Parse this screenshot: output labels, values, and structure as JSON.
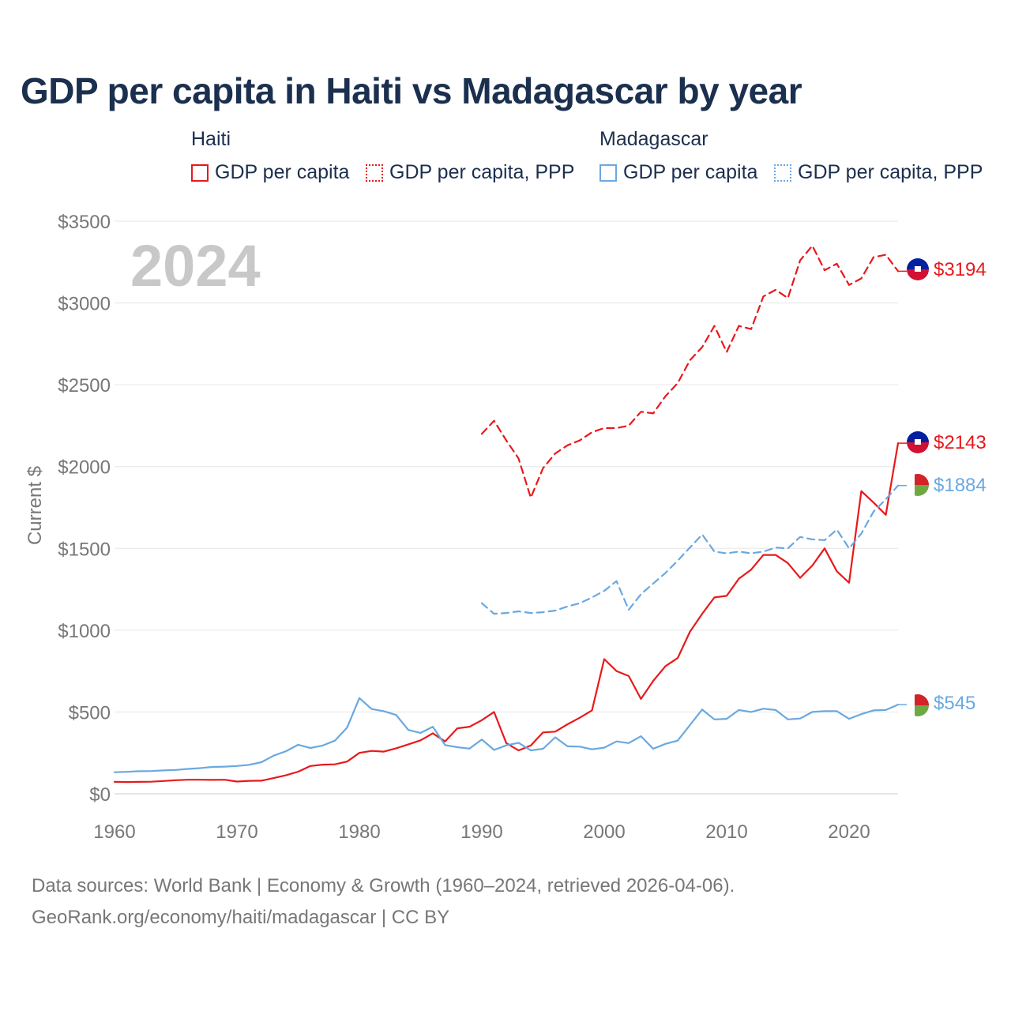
{
  "title": "GDP per capita in Haiti vs Madagascar by year",
  "legend": {
    "haiti": {
      "title": "Haiti",
      "gdp": "GDP per capita",
      "ppp": "GDP per capita, PPP",
      "color": "#e8191c"
    },
    "madagascar": {
      "title": "Madagascar",
      "gdp": "GDP per capita",
      "ppp": "GDP per capita, PPP",
      "color": "#6aa8e0"
    }
  },
  "year_label": "2024",
  "footer": {
    "sources": "Data sources: World Bank | Economy & Growth (1960–2024, retrieved 2026-04-06).",
    "credit": "GeoRank.org/economy/haiti/madagascar | CC BY"
  },
  "chart_data": {
    "type": "line",
    "ylabel": "Current $",
    "xlim": [
      1960,
      2024
    ],
    "ylim": [
      0,
      3500
    ],
    "x_ticks": [
      1960,
      1970,
      1980,
      1990,
      2000,
      2010,
      2020
    ],
    "x_tick_labels": [
      "1960",
      "1970",
      "1980",
      "1990",
      "2000",
      "2010",
      "2020"
    ],
    "y_ticks": [
      0,
      500,
      1000,
      1500,
      2000,
      2500,
      3000,
      3500
    ],
    "y_tick_labels": [
      "$0",
      "$500",
      "$1000",
      "$1500",
      "$2000",
      "$2500",
      "$3000",
      "$3500"
    ],
    "grid": true,
    "series": [
      {
        "name": "Haiti GDP per capita, PPP",
        "country": "haiti",
        "style": "dashed",
        "color": "#e8191c",
        "end_label": "$3194",
        "x": [
          1990,
          1991,
          1992,
          1993,
          1994,
          1995,
          1996,
          1997,
          1998,
          1999,
          2000,
          2001,
          2002,
          2003,
          2004,
          2005,
          2006,
          2007,
          2008,
          2009,
          2010,
          2011,
          2012,
          2013,
          2014,
          2015,
          2016,
          2017,
          2018,
          2019,
          2020,
          2021,
          2022,
          2023,
          2024
        ],
        "y": [
          2200,
          2280,
          2160,
          2050,
          1810,
          1990,
          2080,
          2130,
          2160,
          2210,
          2235,
          2235,
          2250,
          2335,
          2325,
          2430,
          2510,
          2650,
          2730,
          2860,
          2700,
          2860,
          2840,
          3040,
          3080,
          3030,
          3260,
          3350,
          3200,
          3240,
          3110,
          3150,
          3280,
          3295,
          3194
        ]
      },
      {
        "name": "Haiti GDP per capita",
        "country": "haiti",
        "style": "solid",
        "color": "#e8191c",
        "end_label": "$2143",
        "x": [
          1960,
          1961,
          1962,
          1963,
          1964,
          1965,
          1966,
          1967,
          1968,
          1969,
          1970,
          1971,
          1972,
          1973,
          1974,
          1975,
          1976,
          1977,
          1978,
          1979,
          1980,
          1981,
          1982,
          1983,
          1984,
          1985,
          1986,
          1987,
          1988,
          1989,
          1990,
          1991,
          1992,
          1993,
          1994,
          1995,
          1996,
          1997,
          1998,
          1999,
          2000,
          2001,
          2002,
          2003,
          2004,
          2005,
          2006,
          2007,
          2008,
          2009,
          2010,
          2011,
          2012,
          2013,
          2014,
          2015,
          2016,
          2017,
          2018,
          2019,
          2020,
          2021,
          2022,
          2023,
          2024
        ],
        "y": [
          73,
          72,
          73,
          74,
          78,
          83,
          86,
          86,
          85,
          86,
          75,
          79,
          80,
          96,
          113,
          135,
          170,
          178,
          180,
          197,
          250,
          262,
          258,
          278,
          302,
          327,
          370,
          320,
          400,
          410,
          450,
          500,
          310,
          265,
          295,
          375,
          380,
          425,
          465,
          510,
          823,
          750,
          720,
          580,
          690,
          780,
          830,
          990,
          1100,
          1200,
          1210,
          1315,
          1370,
          1460,
          1460,
          1410,
          1320,
          1395,
          1500,
          1360,
          1290,
          1850,
          1780,
          1705,
          2143
        ]
      },
      {
        "name": "Madagascar GDP per capita, PPP",
        "country": "madagascar",
        "style": "dashed",
        "color": "#6aa8e0",
        "end_label": "$1884",
        "x": [
          1990,
          1991,
          1992,
          1993,
          1994,
          1995,
          1996,
          1997,
          1998,
          1999,
          2000,
          2001,
          2002,
          2003,
          2004,
          2005,
          2006,
          2007,
          2008,
          2009,
          2010,
          2011,
          2012,
          2013,
          2014,
          2015,
          2016,
          2017,
          2018,
          2019,
          2020,
          2021,
          2022,
          2023,
          2024
        ],
        "y": [
          1165,
          1100,
          1105,
          1115,
          1105,
          1110,
          1120,
          1145,
          1165,
          1200,
          1240,
          1300,
          1125,
          1220,
          1285,
          1350,
          1425,
          1505,
          1585,
          1480,
          1470,
          1480,
          1470,
          1480,
          1505,
          1500,
          1570,
          1555,
          1550,
          1615,
          1500,
          1590,
          1725,
          1800,
          1884
        ]
      },
      {
        "name": "Madagascar GDP per capita",
        "country": "madagascar",
        "style": "solid",
        "color": "#6aa8e0",
        "end_label": "$545",
        "x": [
          1960,
          1961,
          1962,
          1963,
          1964,
          1965,
          1966,
          1967,
          1968,
          1969,
          1970,
          1971,
          1972,
          1973,
          1974,
          1975,
          1976,
          1977,
          1978,
          1979,
          1980,
          1981,
          1982,
          1983,
          1984,
          1985,
          1986,
          1987,
          1988,
          1989,
          1990,
          1991,
          1992,
          1993,
          1994,
          1995,
          1996,
          1997,
          1998,
          1999,
          2000,
          2001,
          2002,
          2003,
          2004,
          2005,
          2006,
          2007,
          2008,
          2009,
          2010,
          2011,
          2012,
          2013,
          2014,
          2015,
          2016,
          2017,
          2018,
          2019,
          2020,
          2021,
          2022,
          2023,
          2024
        ],
        "y": [
          132,
          134,
          138,
          139,
          143,
          146,
          152,
          157,
          164,
          166,
          170,
          177,
          193,
          233,
          260,
          300,
          280,
          295,
          325,
          405,
          585,
          518,
          505,
          482,
          390,
          372,
          410,
          298,
          285,
          276,
          332,
          268,
          296,
          312,
          265,
          275,
          345,
          290,
          288,
          272,
          282,
          320,
          310,
          352,
          275,
          305,
          325,
          420,
          515,
          455,
          458,
          512,
          500,
          520,
          512,
          455,
          460,
          500,
          505,
          505,
          458,
          487,
          510,
          512,
          545
        ]
      }
    ]
  }
}
